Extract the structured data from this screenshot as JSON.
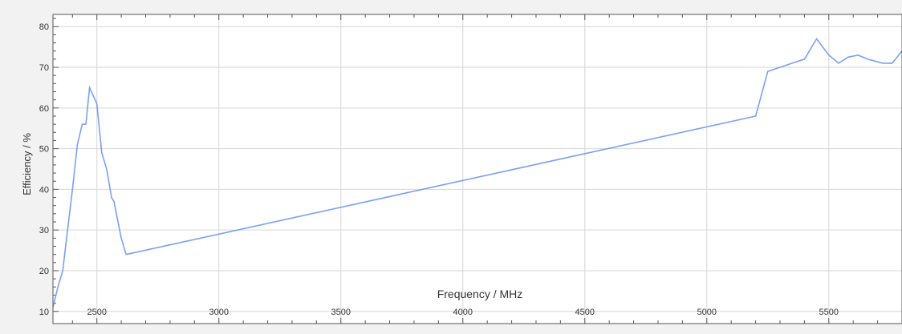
{
  "chart_data": {
    "type": "line",
    "xlabel": "Frequency / MHz",
    "ylabel": "Efficiency / %",
    "xlim": [
      2320,
      5800
    ],
    "ylim": [
      7,
      83
    ],
    "x_ticks": [
      2500,
      3000,
      3500,
      4000,
      4500,
      5000,
      5500
    ],
    "y_ticks": [
      10,
      20,
      30,
      40,
      50,
      60,
      70,
      80
    ],
    "grid": true,
    "colors": {
      "line": "#7b9ff5",
      "grid": "#d6d6d6",
      "plot_bg": "#ffffff",
      "page_bg": "#f2f2f2",
      "frame": "#555555"
    },
    "series": [
      {
        "points": [
          [
            2320,
            11
          ],
          [
            2340,
            16
          ],
          [
            2360,
            20
          ],
          [
            2380,
            30
          ],
          [
            2400,
            40
          ],
          [
            2420,
            51
          ],
          [
            2440,
            56
          ],
          [
            2455,
            56
          ],
          [
            2470,
            65
          ],
          [
            2485,
            63
          ],
          [
            2500,
            61
          ],
          [
            2520,
            49
          ],
          [
            2540,
            45
          ],
          [
            2560,
            38
          ],
          [
            2570,
            37
          ],
          [
            2600,
            28
          ],
          [
            2620,
            24
          ],
          [
            5200,
            58
          ],
          [
            5250,
            69
          ],
          [
            5300,
            70
          ],
          [
            5350,
            71
          ],
          [
            5400,
            72
          ],
          [
            5450,
            77
          ],
          [
            5500,
            73
          ],
          [
            5540,
            71
          ],
          [
            5580,
            72.5
          ],
          [
            5620,
            73
          ],
          [
            5660,
            72
          ],
          [
            5720,
            71
          ],
          [
            5760,
            71
          ],
          [
            5800,
            74
          ]
        ]
      }
    ]
  }
}
